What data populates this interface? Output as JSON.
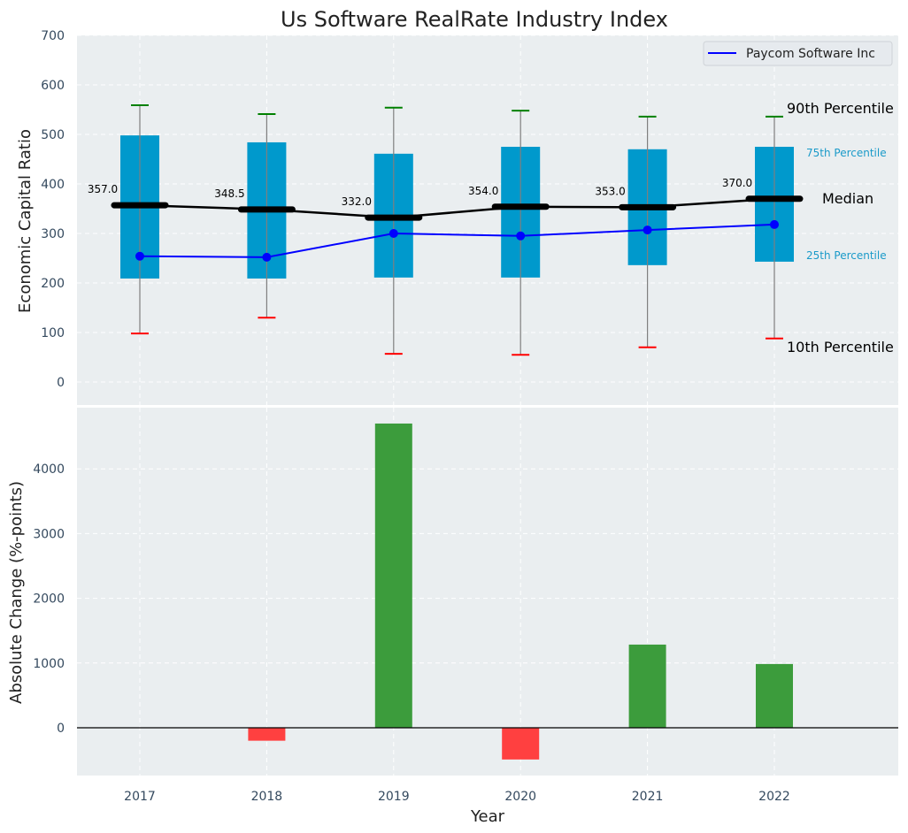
{
  "chart_data": [
    {
      "type": "box",
      "title": "Us Software RealRate Industry Index",
      "xlabel": "",
      "ylabel": "Economic Capital Ratio",
      "ylim": [
        -50,
        700
      ],
      "yticks": [
        0,
        100,
        200,
        300,
        400,
        500,
        600,
        700
      ],
      "categories": [
        "2017",
        "2018",
        "2019",
        "2020",
        "2021",
        "2022"
      ],
      "grid": true,
      "percentiles": {
        "p10": [
          98,
          130,
          57,
          55,
          70,
          88
        ],
        "p25": [
          209,
          209,
          211,
          211,
          236,
          243
        ],
        "median": [
          357.0,
          348.5,
          332.0,
          354.0,
          353.0,
          370.0
        ],
        "p75": [
          498,
          484,
          461,
          475,
          470,
          475
        ],
        "p90": [
          559,
          541,
          554,
          548,
          536,
          536
        ]
      },
      "median_labels": [
        "357.0",
        "348.5",
        "332.0",
        "354.0",
        "353.0",
        "370.0"
      ],
      "series": [
        {
          "name": "Paycom Software Inc",
          "values": [
            254,
            252,
            300,
            295,
            307,
            318
          ],
          "color": "#0000ff"
        }
      ],
      "legend": {
        "position": "top-right",
        "entries": [
          "Paycom Software Inc"
        ]
      },
      "annotations": {
        "p90": "90th Percentile",
        "p75": "75th Percentile",
        "median": "Median",
        "p25": "25th Percentile",
        "p10": "10th Percentile"
      },
      "colors": {
        "box": "#0099cc",
        "p90_cap": "#008000",
        "p10_cap": "#ff0000",
        "median": "#000000",
        "whisker": "#7f7f7f",
        "background": "#eaeef0",
        "annot_small": "#1a9ac9"
      }
    },
    {
      "type": "bar",
      "xlabel": "Year",
      "ylabel": "Absolute Change (%-points)",
      "ylim": [
        -740,
        4960
      ],
      "yticks": [
        0,
        1000,
        2000,
        3000,
        4000
      ],
      "categories": [
        "2017",
        "2018",
        "2019",
        "2020",
        "2021",
        "2022"
      ],
      "values": [
        0,
        -200,
        4700,
        -490,
        1285,
        985
      ],
      "grid": true,
      "colors": {
        "positive": "#3c9c3c",
        "negative": "#ff4040"
      }
    }
  ]
}
